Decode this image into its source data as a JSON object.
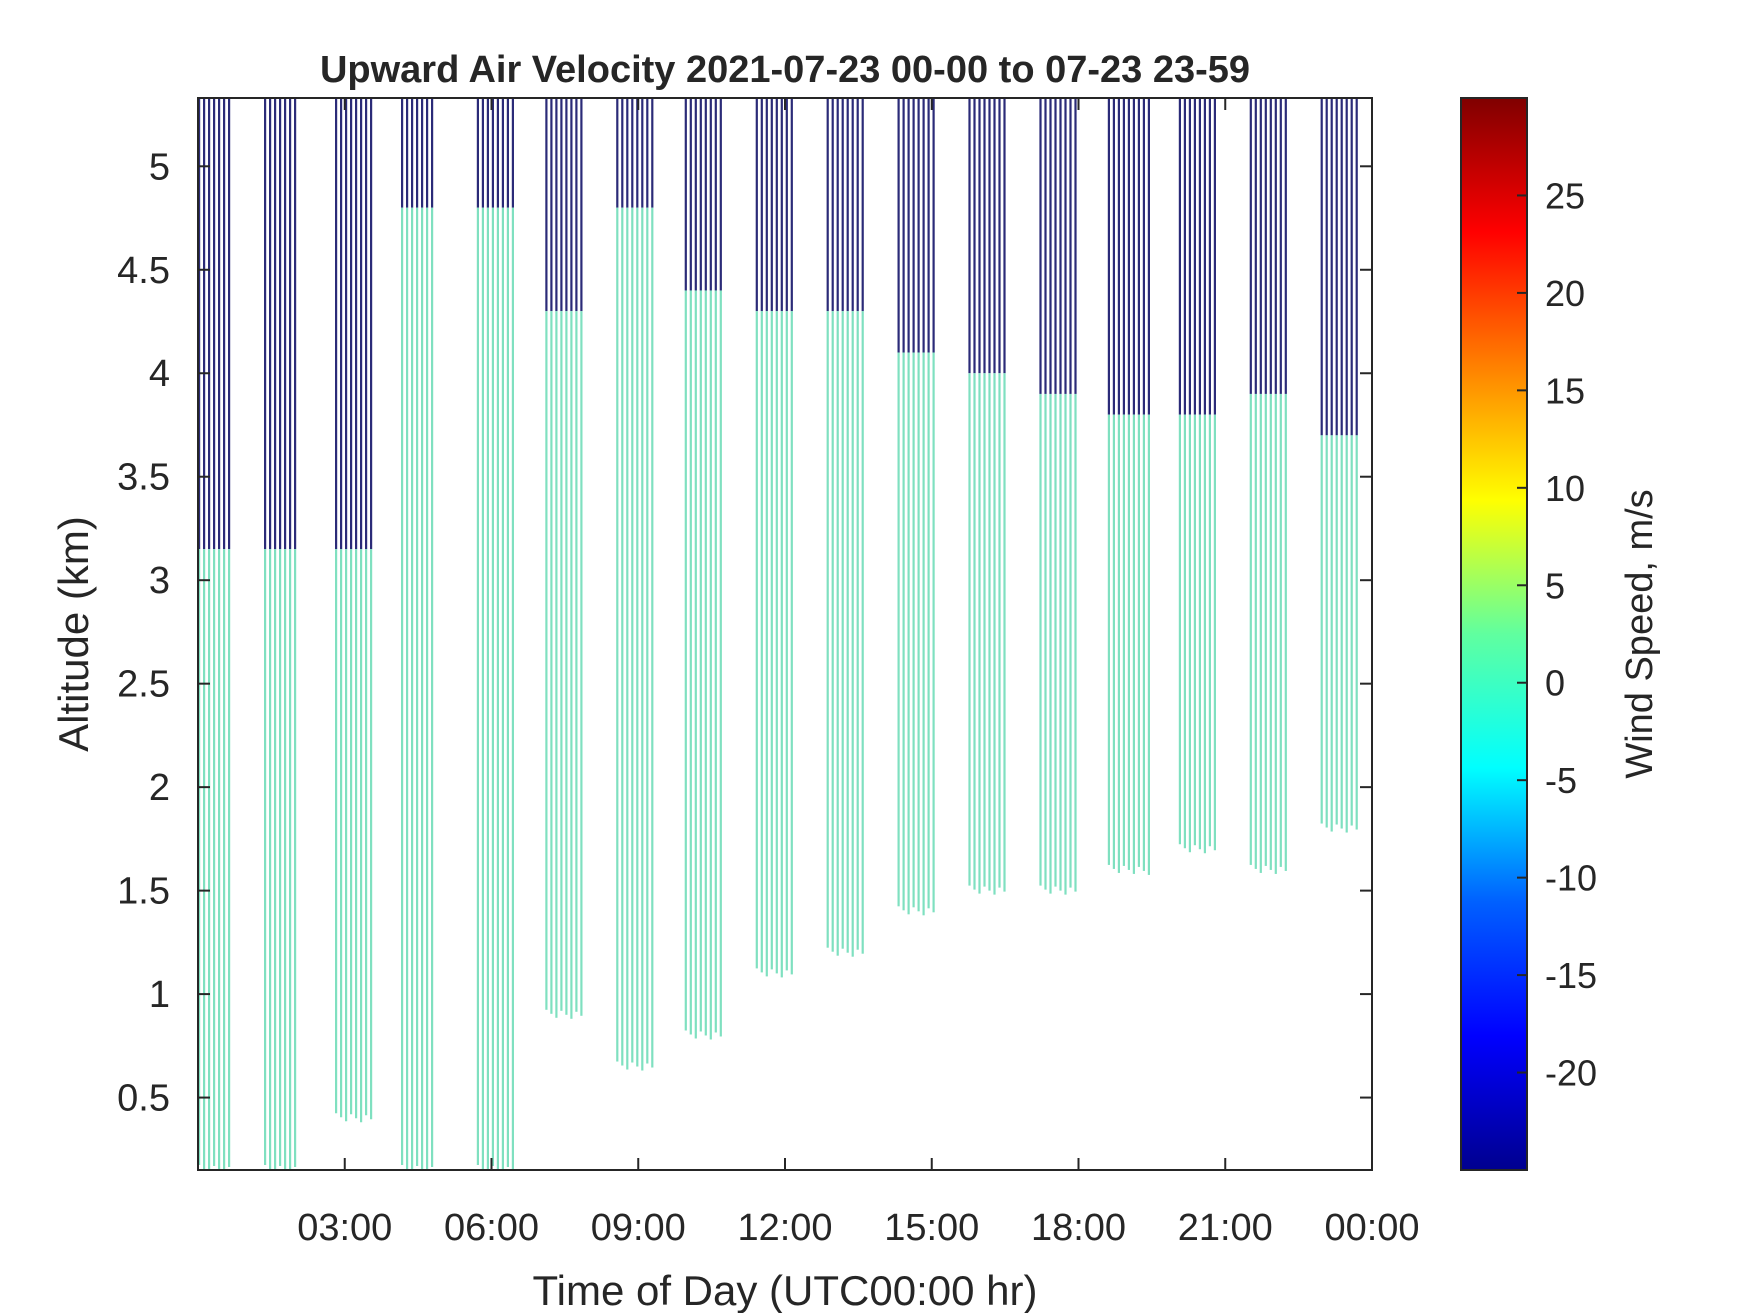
{
  "chart_data": {
    "type": "heatmap",
    "title": "Upward Air Velocity 2021-07-23 00-00 to 07-23 23-59",
    "xlabel": "Time of Day (UTC00:00 hr)",
    "ylabel": "Altitude (km)",
    "xlim": [
      "00:00",
      "24:00"
    ],
    "ylim": [
      0.15,
      5.33
    ],
    "xticks": [
      "03:00",
      "06:00",
      "09:00",
      "12:00",
      "15:00",
      "18:00",
      "21:00",
      "00:00"
    ],
    "yticks": [
      "0.5",
      "1",
      "1.5",
      "2",
      "2.5",
      "3",
      "3.5",
      "4",
      "4.5",
      "5"
    ],
    "colorbar": {
      "label": "Wind Speed, m/s",
      "range": [
        -25,
        30
      ],
      "ticks": [
        "25",
        "20",
        "15",
        "10",
        "5",
        "0",
        "-5",
        "-10",
        "-15",
        "-20"
      ],
      "colormap": [
        "#00008f",
        "#0000ff",
        "#0080ff",
        "#00ffff",
        "#80ff80",
        "#ffff00",
        "#ff8000",
        "#ff0000",
        "#800000"
      ]
    },
    "color_near_zero": "#7fe0c0",
    "color_high_altitude": "#2b2b78",
    "series": [
      {
        "start_hr": 0.0,
        "end_hr": 0.65,
        "green_bottom_km": 0.15,
        "green_top_km": 3.15,
        "dark_top_km": 5.33
      },
      {
        "start_hr": 1.35,
        "end_hr": 2.05,
        "green_bottom_km": 0.15,
        "green_top_km": 3.15,
        "dark_top_km": 5.33
      },
      {
        "start_hr": 2.8,
        "end_hr": 3.6,
        "green_bottom_km": 0.4,
        "green_top_km": 3.15,
        "dark_top_km": 5.33
      },
      {
        "start_hr": 4.15,
        "end_hr": 4.85,
        "green_bottom_km": 0.15,
        "green_top_km": 4.8,
        "dark_top_km": 5.33
      },
      {
        "start_hr": 5.7,
        "end_hr": 6.5,
        "green_bottom_km": 0.15,
        "green_top_km": 4.8,
        "dark_top_km": 5.33
      },
      {
        "start_hr": 7.1,
        "end_hr": 7.9,
        "green_bottom_km": 0.9,
        "green_top_km": 4.3,
        "dark_top_km": 5.33
      },
      {
        "start_hr": 8.55,
        "end_hr": 9.3,
        "green_bottom_km": 0.65,
        "green_top_km": 4.8,
        "dark_top_km": 5.33
      },
      {
        "start_hr": 9.95,
        "end_hr": 10.75,
        "green_bottom_km": 0.8,
        "green_top_km": 4.4,
        "dark_top_km": 5.33
      },
      {
        "start_hr": 11.4,
        "end_hr": 12.2,
        "green_bottom_km": 1.1,
        "green_top_km": 4.3,
        "dark_top_km": 5.33
      },
      {
        "start_hr": 12.85,
        "end_hr": 13.65,
        "green_bottom_km": 1.2,
        "green_top_km": 4.3,
        "dark_top_km": 5.33
      },
      {
        "start_hr": 14.3,
        "end_hr": 15.1,
        "green_bottom_km": 1.4,
        "green_top_km": 4.1,
        "dark_top_km": 5.33
      },
      {
        "start_hr": 15.75,
        "end_hr": 16.55,
        "green_bottom_km": 1.5,
        "green_top_km": 4.0,
        "dark_top_km": 5.33
      },
      {
        "start_hr": 17.2,
        "end_hr": 18.0,
        "green_bottom_km": 1.5,
        "green_top_km": 3.9,
        "dark_top_km": 5.33
      },
      {
        "start_hr": 18.6,
        "end_hr": 19.45,
        "green_bottom_km": 1.6,
        "green_top_km": 3.8,
        "dark_top_km": 5.33
      },
      {
        "start_hr": 20.05,
        "end_hr": 20.85,
        "green_bottom_km": 1.7,
        "green_top_km": 3.8,
        "dark_top_km": 5.33
      },
      {
        "start_hr": 21.5,
        "end_hr": 22.3,
        "green_bottom_km": 1.6,
        "green_top_km": 3.9,
        "dark_top_km": 5.33
      },
      {
        "start_hr": 22.95,
        "end_hr": 23.75,
        "green_bottom_km": 1.8,
        "green_top_km": 3.7,
        "dark_top_km": 5.33
      }
    ]
  }
}
